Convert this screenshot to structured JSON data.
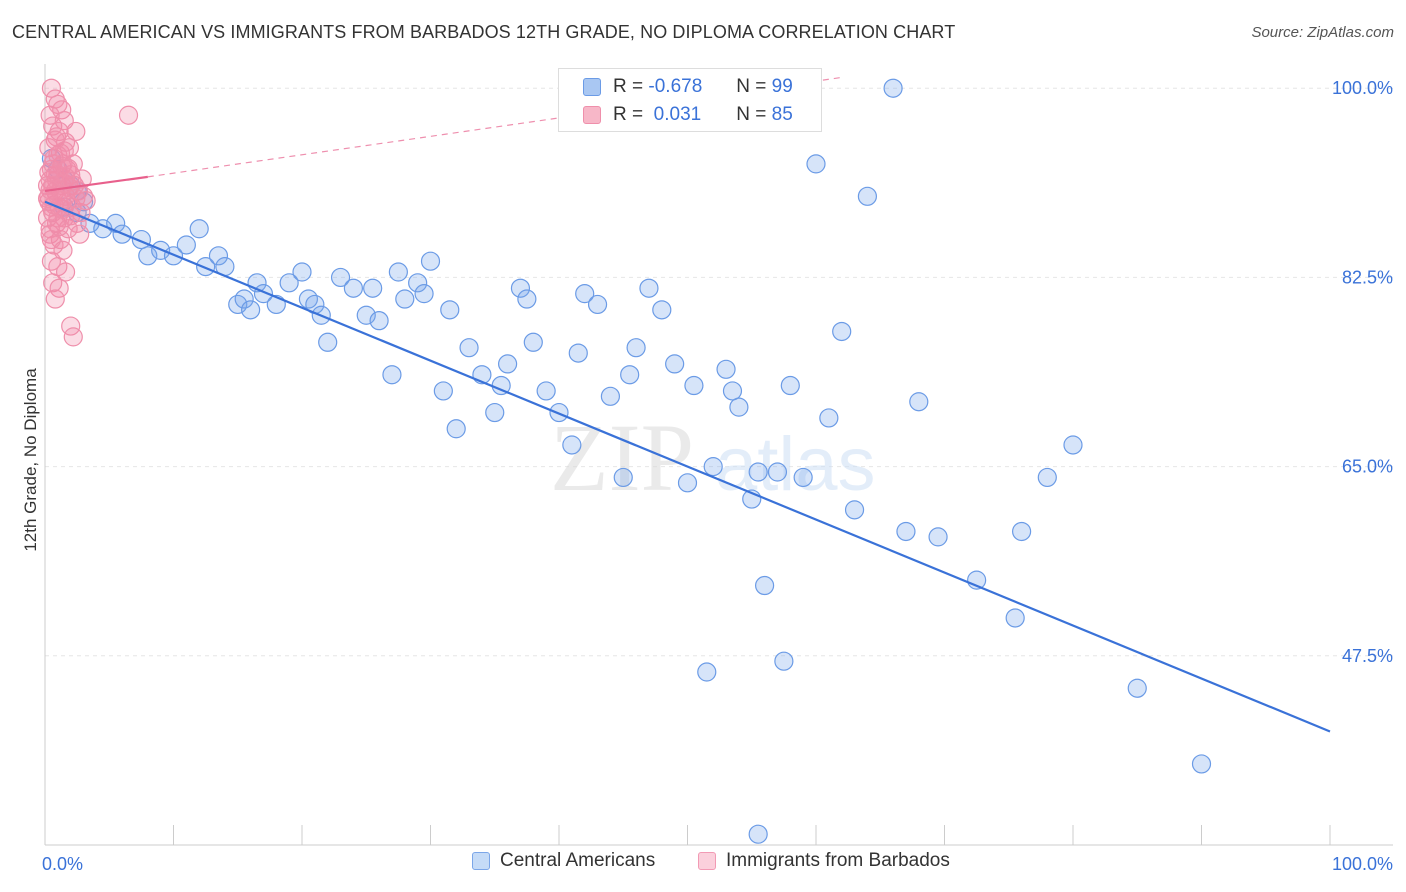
{
  "title": "CENTRAL AMERICAN VS IMMIGRANTS FROM BARBADOS 12TH GRADE, NO DIPLOMA CORRELATION CHART",
  "source": "Source: ZipAtlas.com",
  "watermark": {
    "zip": "ZIP",
    "atlas": "atlas"
  },
  "stats": [
    {
      "r_label": "R =",
      "r_value": "-0.678",
      "n_label": "N =",
      "n_value": "99",
      "color": "#a9c7f2",
      "border": "#6b9be6"
    },
    {
      "r_label": "R =",
      "r_value": " 0.031",
      "n_label": "N =",
      "n_value": "85",
      "color": "#f7b7c8",
      "border": "#ef8fab"
    }
  ],
  "legend": [
    {
      "label": "Central Americans",
      "color": "#c5dbf7",
      "border": "#7ba6e8"
    },
    {
      "label": "Immigrants from Barbados",
      "color": "#fbd0dc",
      "border": "#f29ab4"
    }
  ],
  "chart_data": {
    "type": "scatter",
    "title": "CENTRAL AMERICAN VS IMMIGRANTS FROM BARBADOS 12TH GRADE, NO DIPLOMA CORRELATION CHART",
    "xlabel": "",
    "ylabel": "12th Grade, No Diploma",
    "xlim": [
      0,
      100
    ],
    "ylim": [
      30,
      101.5
    ],
    "x_tick_labels": [
      "0.0%",
      "100.0%"
    ],
    "y_ticks": [
      47.5,
      65.0,
      82.5,
      100.0
    ],
    "y_tick_labels": [
      "47.5%",
      "65.0%",
      "82.5%",
      "100.0%"
    ],
    "grid": true,
    "legend_position": "bottom-center",
    "series": [
      {
        "name": "Central Americans",
        "color": "#6b9be6",
        "fill": "rgba(120,165,235,0.30)",
        "trend": {
          "x": [
            0,
            100
          ],
          "y": [
            89.5,
            40.5
          ],
          "color": "#3a72d8"
        },
        "points": [
          [
            0.5,
            93.5
          ],
          [
            1.0,
            92.5
          ],
          [
            1.5,
            91.5
          ],
          [
            2.0,
            91.0
          ],
          [
            2.5,
            90.5
          ],
          [
            3.0,
            89.5
          ],
          [
            1.5,
            89.0
          ],
          [
            2.5,
            88.5
          ],
          [
            3.5,
            87.5
          ],
          [
            4.5,
            87.0
          ],
          [
            5.5,
            87.5
          ],
          [
            6.0,
            86.5
          ],
          [
            7.5,
            86.0
          ],
          [
            8.0,
            84.5
          ],
          [
            9.0,
            85.0
          ],
          [
            10.0,
            84.5
          ],
          [
            11.0,
            85.5
          ],
          [
            12.0,
            87.0
          ],
          [
            12.5,
            83.5
          ],
          [
            13.5,
            84.5
          ],
          [
            14.0,
            83.5
          ],
          [
            15.0,
            80.0
          ],
          [
            15.5,
            80.5
          ],
          [
            16.0,
            79.5
          ],
          [
            16.5,
            82.0
          ],
          [
            17.0,
            81.0
          ],
          [
            18.0,
            80.0
          ],
          [
            19.0,
            82.0
          ],
          [
            20.0,
            83.0
          ],
          [
            20.5,
            80.5
          ],
          [
            21.0,
            80.0
          ],
          [
            21.5,
            79.0
          ],
          [
            22.0,
            76.5
          ],
          [
            23.0,
            82.5
          ],
          [
            24.0,
            81.5
          ],
          [
            25.0,
            79.0
          ],
          [
            25.5,
            81.5
          ],
          [
            26.0,
            78.5
          ],
          [
            27.0,
            73.5
          ],
          [
            27.5,
            83.0
          ],
          [
            28.0,
            80.5
          ],
          [
            29.0,
            82.0
          ],
          [
            29.5,
            81.0
          ],
          [
            30.0,
            84.0
          ],
          [
            31.0,
            72.0
          ],
          [
            31.5,
            79.5
          ],
          [
            32.0,
            68.5
          ],
          [
            33.0,
            76.0
          ],
          [
            34.0,
            73.5
          ],
          [
            35.0,
            70.0
          ],
          [
            35.5,
            72.5
          ],
          [
            36.0,
            74.5
          ],
          [
            37.0,
            81.5
          ],
          [
            37.5,
            80.5
          ],
          [
            38.0,
            76.5
          ],
          [
            39.0,
            72.0
          ],
          [
            40.0,
            70.0
          ],
          [
            41.0,
            67.0
          ],
          [
            41.5,
            75.5
          ],
          [
            42.0,
            81.0
          ],
          [
            43.0,
            80.0
          ],
          [
            44.0,
            71.5
          ],
          [
            45.0,
            64.0
          ],
          [
            45.5,
            73.5
          ],
          [
            46.0,
            76.0
          ],
          [
            47.0,
            81.5
          ],
          [
            48.0,
            79.5
          ],
          [
            49.0,
            74.5
          ],
          [
            50.0,
            63.5
          ],
          [
            50.5,
            72.5
          ],
          [
            51.5,
            46.0
          ],
          [
            52.0,
            65.0
          ],
          [
            53.0,
            74.0
          ],
          [
            53.5,
            72.0
          ],
          [
            54.0,
            70.5
          ],
          [
            55.0,
            62.0
          ],
          [
            55.5,
            64.5
          ],
          [
            56.0,
            54.0
          ],
          [
            57.0,
            64.5
          ],
          [
            57.5,
            47.0
          ],
          [
            58.0,
            72.5
          ],
          [
            59.0,
            64.0
          ],
          [
            60.0,
            93.0
          ],
          [
            61.0,
            69.5
          ],
          [
            62.0,
            77.5
          ],
          [
            63.0,
            61.0
          ],
          [
            64.0,
            90.0
          ],
          [
            66.0,
            100.0
          ],
          [
            67.0,
            59.0
          ],
          [
            68.0,
            71.0
          ],
          [
            69.5,
            58.5
          ],
          [
            72.5,
            54.5
          ],
          [
            75.5,
            51.0
          ],
          [
            78.0,
            64.0
          ],
          [
            80.0,
            67.0
          ],
          [
            85.0,
            44.5
          ],
          [
            90.0,
            37.5
          ],
          [
            55.5,
            31.0
          ],
          [
            76.0,
            59.0
          ]
        ]
      },
      {
        "name": "Immigrants from Barbados",
        "color": "#ef8fab",
        "fill": "rgba(242,140,170,0.30)",
        "trend": {
          "x": [
            0,
            8
          ],
          "y": [
            90.5,
            91.8
          ],
          "color": "#e8608c",
          "dashed": {
            "x": [
              8,
              62
            ],
            "y": [
              91.8,
              101.0
            ]
          }
        },
        "points": [
          [
            0.5,
            100.0
          ],
          [
            0.8,
            99.0
          ],
          [
            1.0,
            98.5
          ],
          [
            1.3,
            98.0
          ],
          [
            0.4,
            97.5
          ],
          [
            1.5,
            97.0
          ],
          [
            0.6,
            96.5
          ],
          [
            1.1,
            96.0
          ],
          [
            0.9,
            95.5
          ],
          [
            1.6,
            95.0
          ],
          [
            0.3,
            94.5
          ],
          [
            1.2,
            94.0
          ],
          [
            0.7,
            93.5
          ],
          [
            1.4,
            93.0
          ],
          [
            0.5,
            92.5
          ],
          [
            1.0,
            92.0
          ],
          [
            1.7,
            92.5
          ],
          [
            0.4,
            91.5
          ],
          [
            1.3,
            91.0
          ],
          [
            0.8,
            90.5
          ],
          [
            1.6,
            90.0
          ],
          [
            0.3,
            89.5
          ],
          [
            1.1,
            89.0
          ],
          [
            0.6,
            88.5
          ],
          [
            1.5,
            88.0
          ],
          [
            0.9,
            87.5
          ],
          [
            1.8,
            87.0
          ],
          [
            0.4,
            86.5
          ],
          [
            1.2,
            86.0
          ],
          [
            0.7,
            85.5
          ],
          [
            1.4,
            85.0
          ],
          [
            0.5,
            84.0
          ],
          [
            1.0,
            83.5
          ],
          [
            0.6,
            82.0
          ],
          [
            1.1,
            81.5
          ],
          [
            0.8,
            80.5
          ],
          [
            2.0,
            92.0
          ],
          [
            2.3,
            91.0
          ],
          [
            2.6,
            90.5
          ],
          [
            2.1,
            89.0
          ],
          [
            2.8,
            88.5
          ],
          [
            2.2,
            93.0
          ],
          [
            1.9,
            94.5
          ],
          [
            2.4,
            96.0
          ],
          [
            2.5,
            87.5
          ],
          [
            2.7,
            86.5
          ],
          [
            3.0,
            90.0
          ],
          [
            1.6,
            83.0
          ],
          [
            2.0,
            78.0
          ],
          [
            2.2,
            77.0
          ],
          [
            6.5,
            97.5
          ],
          [
            0.2,
            91.0
          ],
          [
            0.3,
            90.0
          ],
          [
            0.5,
            89.0
          ],
          [
            0.2,
            88.0
          ],
          [
            0.9,
            91.5
          ],
          [
            1.3,
            92.8
          ],
          [
            0.6,
            93.0
          ],
          [
            1.0,
            88.0
          ],
          [
            1.7,
            89.5
          ],
          [
            0.4,
            87.0
          ],
          [
            1.2,
            90.5
          ],
          [
            0.8,
            92.0
          ],
          [
            1.5,
            91.2
          ],
          [
            0.3,
            92.2
          ],
          [
            1.9,
            90.8
          ],
          [
            2.4,
            89.8
          ],
          [
            0.7,
            89.2
          ],
          [
            1.1,
            87.2
          ],
          [
            0.5,
            86.0
          ],
          [
            1.4,
            88.8
          ],
          [
            2.0,
            88.2
          ],
          [
            0.9,
            90.2
          ],
          [
            1.6,
            91.8
          ],
          [
            0.2,
            89.8
          ],
          [
            1.8,
            92.6
          ],
          [
            0.6,
            91.0
          ],
          [
            1.3,
            89.6
          ],
          [
            2.1,
            91.4
          ],
          [
            0.4,
            90.6
          ],
          [
            1.0,
            93.8
          ],
          [
            1.5,
            94.2
          ],
          [
            0.8,
            95.2
          ],
          [
            2.9,
            91.6
          ],
          [
            3.2,
            89.6
          ]
        ]
      }
    ]
  }
}
